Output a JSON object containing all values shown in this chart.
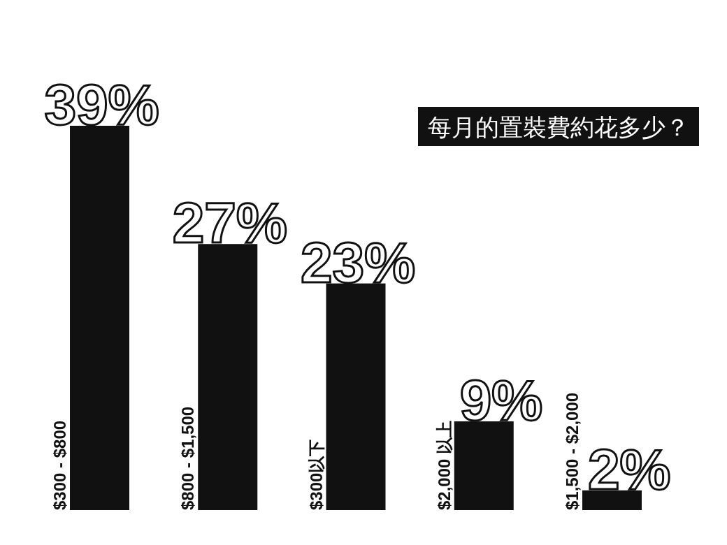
{
  "chart_data": {
    "type": "bar",
    "title": "每月的置裝費約花多少？",
    "categories": [
      "$300 - $800",
      "$800 - $1,500",
      "$300以下",
      "$2,000 以上",
      "$1,500 - $2,000"
    ],
    "values": [
      39,
      27,
      23,
      9,
      2
    ],
    "value_labels": [
      "39%",
      "27%",
      "23%",
      "9%",
      "2%"
    ],
    "color": "#111111"
  }
}
